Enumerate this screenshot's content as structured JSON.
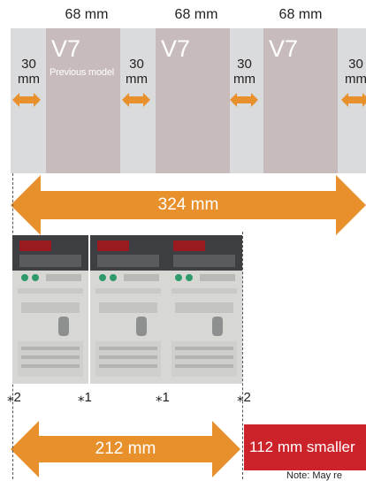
{
  "top_widths": [
    "68 mm",
    "68 mm",
    "68 mm"
  ],
  "models": {
    "name": "V7",
    "previous_label": "Previous model"
  },
  "gap": {
    "value": "30",
    "unit": "mm"
  },
  "old_total": "324 mm",
  "new_total": "212 mm",
  "markers": [
    "⁎2",
    "⁎1",
    "⁎1",
    "⁎2"
  ],
  "reduction": "112 mm smaller",
  "footnote": "Note: May re",
  "colors": {
    "band": "#dadbdc",
    "model_block": "#c7bcbb",
    "arrow": "#e8902c",
    "highlight": "#cc2229"
  }
}
